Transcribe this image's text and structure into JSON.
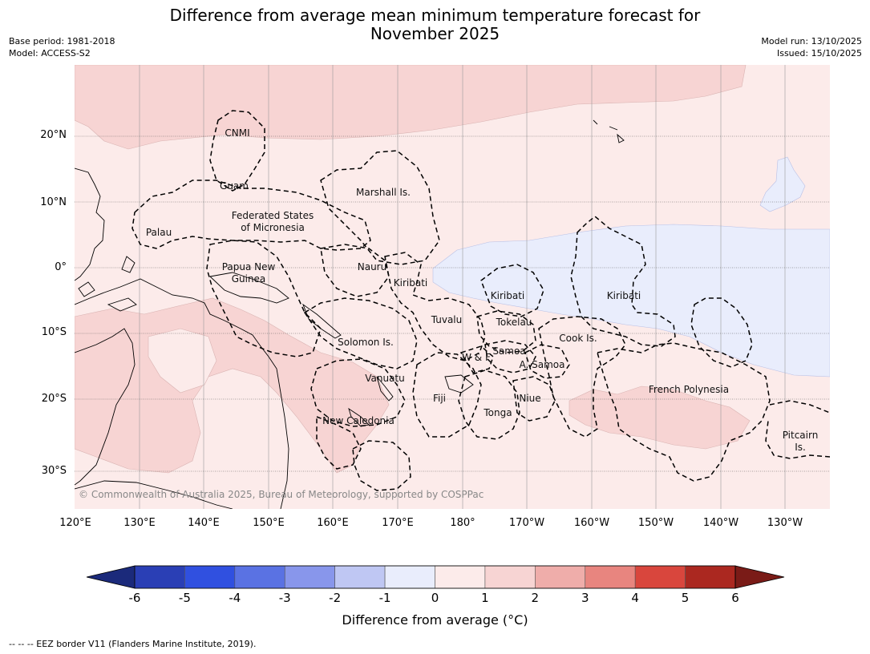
{
  "title_line1": "Difference from average mean minimum temperature forecast for",
  "title_line2": "November 2025",
  "meta_left": [
    "Base period: 1981-2018",
    "Model: ACCESS-S2"
  ],
  "meta_right": [
    "Model run: 13/10/2025",
    "Issued: 15/10/2025"
  ],
  "lat_labels": [
    "20°N",
    "10°N",
    "0°",
    "10°S",
    "20°S",
    "30°S"
  ],
  "lon_labels": [
    "120°E",
    "130°E",
    "140°E",
    "150°E",
    "160°E",
    "170°E",
    "180°",
    "170°W",
    "160°W",
    "150°W",
    "140°W",
    "130°W"
  ],
  "regions": {
    "cnmi": "CNMI",
    "guam": "Guam",
    "marshall": "Marshall Is.",
    "palau": "Palau",
    "fsm1": "Federated States",
    "fsm2": "of Micronesia",
    "png1": "Papua New",
    "png2": "Guinea",
    "nauru": "Nauru",
    "kiribati_w": "Kiribati",
    "kiribati_c": "Kiribati",
    "kiribati_e": "Kiribati",
    "tuvalu": "Tuvalu",
    "tokelau": "Tokelau",
    "solomon": "Solomon Is.",
    "wf": "W & F",
    "samoa": "Samoa",
    "asamoa": "A. Samoa",
    "cook": "Cook Is.",
    "vanuatu": "Vanuatu",
    "fiji": "Fiji",
    "niue": "Niue",
    "tonga": "Tonga",
    "french_polynesia": "French Polynesia",
    "new_caledonia": "New Caledonia",
    "pitcairn1": "Pitcairn",
    "pitcairn2": "Is."
  },
  "copyright": "© Commonwealth of Australia 2025, Bureau of Meteorology, supported by COSPPac",
  "colorbar": {
    "ticks": [
      "-6",
      "-5",
      "-4",
      "-3",
      "-2",
      "-1",
      "0",
      "1",
      "2",
      "3",
      "4",
      "5",
      "6"
    ],
    "colors": [
      "#1b2a7b",
      "#2a3fb5",
      "#3050e0",
      "#5a72e3",
      "#8896eb",
      "#bfc7f3",
      "#e9edfc",
      "#fcebea",
      "#f7d4d3",
      "#efadaa",
      "#e8857f",
      "#d9463d",
      "#ab2820",
      "#7a1b17"
    ],
    "label": "Difference from average (°C)"
  },
  "footnote": "--  --  -- EEZ border V11 (Flanders Marine Institute, 2019)."
}
